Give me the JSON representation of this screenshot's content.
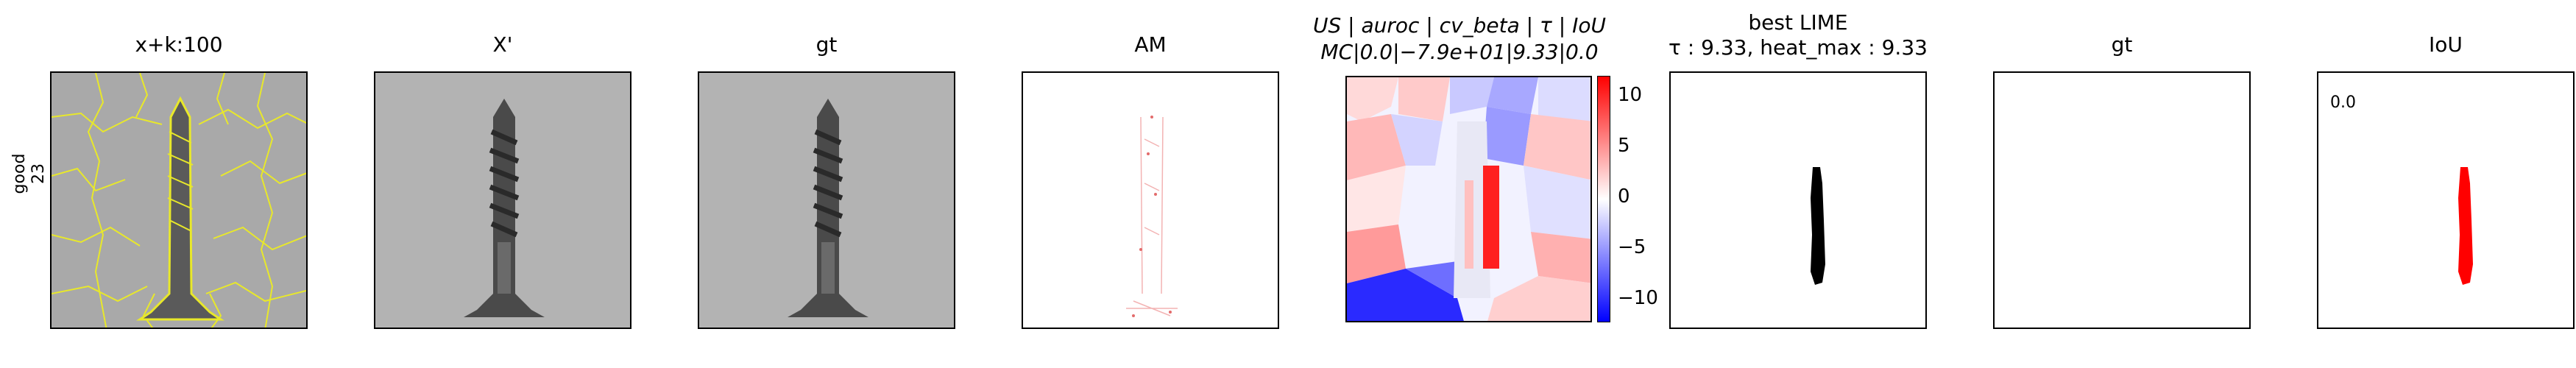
{
  "row_label": {
    "line1": "good",
    "line2": "23"
  },
  "panels": [
    {
      "title": "x+k:100"
    },
    {
      "title": "X'"
    },
    {
      "title": "gt"
    },
    {
      "title": "AM"
    },
    {
      "title_line1": "US | auroc | cv_beta | τ | IoU",
      "title_line2": "MC|0.0|−7.9e+01|9.33|0.0"
    },
    {
      "title_line1": "best LIME",
      "title_line2": "τ : 9.33, heat_max : 9.33"
    },
    {
      "title": "gt"
    },
    {
      "title": "IoU",
      "value_text": "0.0"
    }
  ],
  "colorbar": {
    "ticks": [
      "10",
      "5",
      "0",
      "−5",
      "−10"
    ],
    "colors": {
      "high": "#ff0000",
      "mid": "#ffffff",
      "low": "#0000ff"
    }
  },
  "chart_data": {
    "type": "heatmap",
    "colorbar_ticks": [
      10,
      5,
      0,
      -5,
      -10
    ],
    "colorbar_range": [
      -12,
      12
    ]
  },
  "colors": {
    "contour": "#e8e82a",
    "mask_black": "#000000",
    "mask_red": "#ff0000"
  }
}
